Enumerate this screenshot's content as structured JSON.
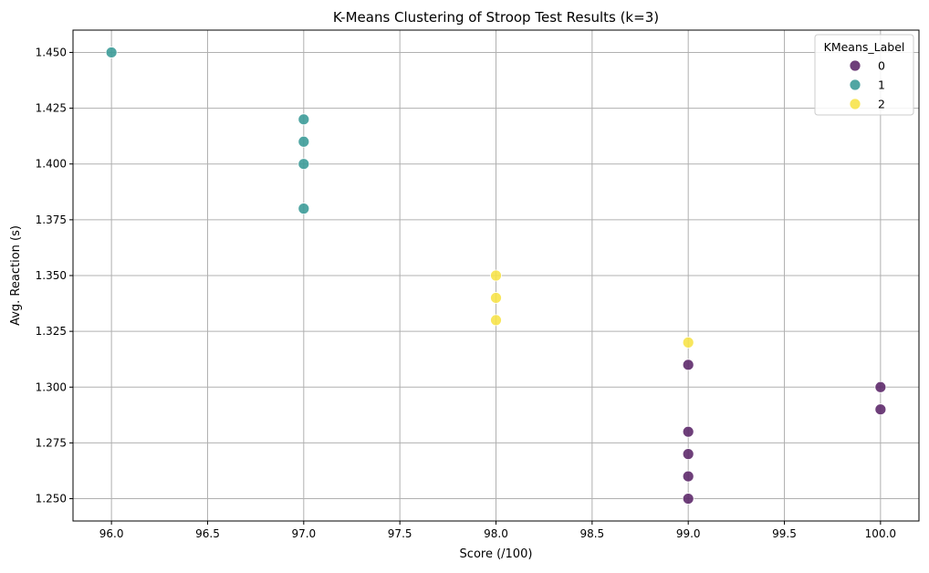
{
  "chart_data": {
    "type": "scatter",
    "title": "K-Means Clustering of Stroop Test Results (k=3)",
    "xlabel": "Score (/100)",
    "ylabel": "Avg. Reaction (s)",
    "xlim": [
      95.8,
      100.2
    ],
    "ylim": [
      1.24,
      1.46
    ],
    "xticks": [
      96.0,
      96.5,
      97.0,
      97.5,
      98.0,
      98.5,
      99.0,
      99.5,
      100.0
    ],
    "xtick_labels": [
      "96.0",
      "96.5",
      "97.0",
      "97.5",
      "98.0",
      "98.5",
      "99.0",
      "99.5",
      "100.0"
    ],
    "yticks": [
      1.25,
      1.275,
      1.3,
      1.325,
      1.35,
      1.375,
      1.4,
      1.425,
      1.45
    ],
    "ytick_labels": [
      "1.250",
      "1.275",
      "1.300",
      "1.325",
      "1.350",
      "1.375",
      "1.400",
      "1.425",
      "1.450"
    ],
    "grid": true,
    "legend": {
      "title": "KMeans_Label",
      "placement": "top-right",
      "entries": [
        "0",
        "1",
        "2"
      ]
    },
    "series": [
      {
        "name": "0",
        "color": "#5e2a6b",
        "points": [
          {
            "x": 99,
            "y": 1.31
          },
          {
            "x": 99,
            "y": 1.28
          },
          {
            "x": 99,
            "y": 1.27
          },
          {
            "x": 99,
            "y": 1.26
          },
          {
            "x": 99,
            "y": 1.25
          },
          {
            "x": 100,
            "y": 1.3
          },
          {
            "x": 100,
            "y": 1.29
          }
        ]
      },
      {
        "name": "1",
        "color": "#3d9c99",
        "points": [
          {
            "x": 96,
            "y": 1.45
          },
          {
            "x": 97,
            "y": 1.42
          },
          {
            "x": 97,
            "y": 1.41
          },
          {
            "x": 97,
            "y": 1.4
          },
          {
            "x": 97,
            "y": 1.38
          }
        ]
      },
      {
        "name": "2",
        "color": "#f7e34a",
        "points": [
          {
            "x": 98,
            "y": 1.35
          },
          {
            "x": 98,
            "y": 1.34
          },
          {
            "x": 98,
            "y": 1.33
          },
          {
            "x": 99,
            "y": 1.32
          }
        ]
      }
    ]
  }
}
